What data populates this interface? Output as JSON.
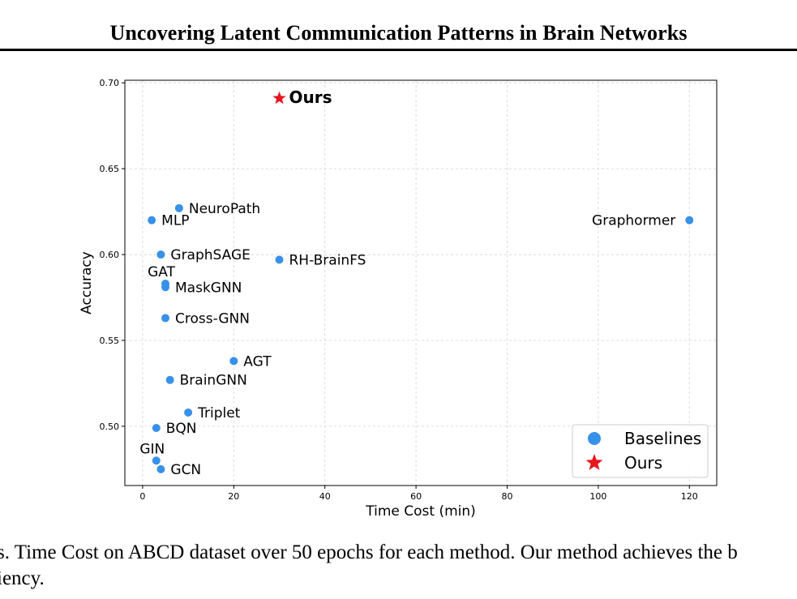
{
  "header": {
    "title": "Uncovering Latent Communication Patterns in Brain Networks"
  },
  "caption": {
    "line1": "s. Time Cost on ABCD dataset over 50 epochs for each method. Our method achieves the b",
    "line2": "iency."
  },
  "chart_data": {
    "type": "scatter",
    "title": "",
    "xlabel": "Time Cost (min)",
    "ylabel": "Accuracy",
    "xlim": [
      -3.9,
      126
    ],
    "ylim": [
      0.4655,
      0.7015
    ],
    "xticks": [
      0,
      20,
      40,
      60,
      80,
      100,
      120
    ],
    "yticks": [
      0.5,
      0.55,
      0.6,
      0.65,
      0.7
    ],
    "ytick_labels": [
      "0.50",
      "0.55",
      "0.60",
      "0.65",
      "0.70"
    ],
    "grid": true,
    "legend_position": "lower-right",
    "colors": {
      "baselines": "#3891e8",
      "ours": "#e8141e"
    },
    "series": [
      {
        "name": "Baselines",
        "marker": "circle",
        "points": [
          {
            "label": "NeuroPath",
            "x": 8,
            "y": 0.627,
            "label_side": "right"
          },
          {
            "label": "MLP",
            "x": 2,
            "y": 0.62,
            "label_side": "right"
          },
          {
            "label": "Graphormer",
            "x": 120,
            "y": 0.62,
            "label_side": "left"
          },
          {
            "label": "GraphSAGE",
            "x": 4,
            "y": 0.6,
            "label_side": "right"
          },
          {
            "label": "RH-BrainFS",
            "x": 30,
            "y": 0.597,
            "label_side": "right"
          },
          {
            "label": "GAT",
            "x": 5,
            "y": 0.583,
            "label_side": "above"
          },
          {
            "label": "MaskGNN",
            "x": 5,
            "y": 0.581,
            "label_side": "right"
          },
          {
            "label": "Cross-GNN",
            "x": 5,
            "y": 0.563,
            "label_side": "right"
          },
          {
            "label": "AGT",
            "x": 20,
            "y": 0.538,
            "label_side": "right"
          },
          {
            "label": "BrainGNN",
            "x": 6,
            "y": 0.527,
            "label_side": "right"
          },
          {
            "label": "Triplet",
            "x": 10,
            "y": 0.508,
            "label_side": "right"
          },
          {
            "label": "BQN",
            "x": 3,
            "y": 0.499,
            "label_side": "right"
          },
          {
            "label": "GIN",
            "x": 3,
            "y": 0.48,
            "label_side": "above"
          },
          {
            "label": "GCN",
            "x": 4,
            "y": 0.475,
            "label_side": "right"
          }
        ]
      },
      {
        "name": "Ours",
        "marker": "star",
        "points": [
          {
            "label": "Ours",
            "x": 30,
            "y": 0.691,
            "label_side": "right",
            "bold": true
          }
        ]
      }
    ]
  }
}
